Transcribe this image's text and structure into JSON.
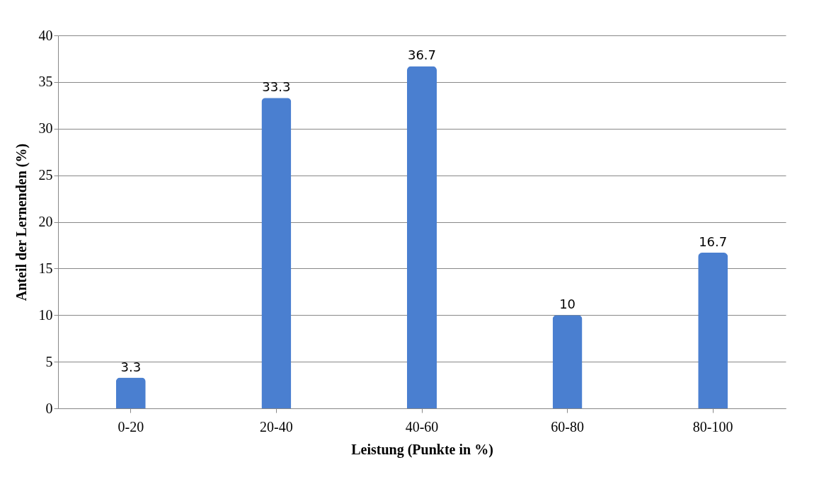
{
  "chart_data": {
    "type": "bar",
    "xlabel": "Leistung (Punkte in %)",
    "ylabel": "Anteil der Lernenden (%)",
    "categories": [
      "0-20",
      "20-40",
      "40-60",
      "60-80",
      "80-100"
    ],
    "values": [
      3.3,
      33.3,
      36.7,
      10,
      16.7
    ],
    "color": "#4a7fd0",
    "ylim": [
      0,
      40
    ],
    "yticks": [
      0,
      5,
      10,
      15,
      20,
      25,
      30,
      35,
      40
    ],
    "grid": "y",
    "data_labels": true
  }
}
